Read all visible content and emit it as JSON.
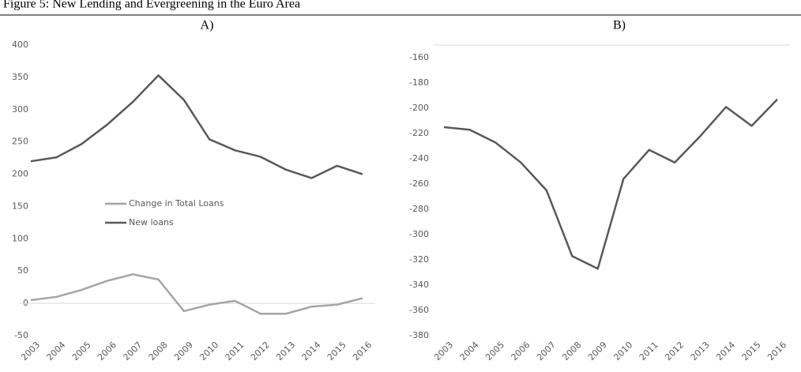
{
  "title": "Figure 5: New Lending and Evergreening in the Euro Area",
  "chart_data": [
    {
      "type": "line",
      "panel_label": "A)",
      "categories": [
        "2003",
        "2004",
        "2005",
        "2006",
        "2007",
        "2008",
        "2009",
        "2010",
        "2011",
        "2012",
        "2013",
        "2014",
        "2015",
        "2016"
      ],
      "series": [
        {
          "name": "Change in Total Loans",
          "color": "#a5a5a5",
          "values": [
            5,
            10,
            21,
            35,
            45,
            37,
            -12,
            -2,
            4,
            -16,
            -16,
            -5,
            -2,
            8
          ]
        },
        {
          "name": "New loans",
          "color": "#595959",
          "values": [
            220,
            226,
            247,
            277,
            312,
            353,
            315,
            254,
            237,
            227,
            207,
            194,
            213,
            200
          ]
        }
      ],
      "ylim": [
        -50,
        400
      ],
      "yticks": [
        -50,
        0,
        50,
        100,
        150,
        200,
        250,
        300,
        350,
        400
      ],
      "legend": true
    },
    {
      "type": "line",
      "panel_label": "B)",
      "categories": [
        "2003",
        "2004",
        "2005",
        "2006",
        "2007",
        "2008",
        "2009",
        "2010",
        "2011",
        "2012",
        "2013",
        "2014",
        "2015",
        "2016"
      ],
      "series": [
        {
          "color": "#595959",
          "values": [
            -215,
            -217,
            -227,
            -243,
            -265,
            -317,
            -327,
            -256,
            -233,
            -243,
            -222,
            -199,
            -214,
            -193
          ]
        }
      ],
      "ylim": [
        -380,
        -150
      ],
      "yticks": [
        -380,
        -360,
        -340,
        -320,
        -300,
        -280,
        -260,
        -240,
        -220,
        -200,
        -180,
        -160
      ],
      "legend": false
    }
  ]
}
